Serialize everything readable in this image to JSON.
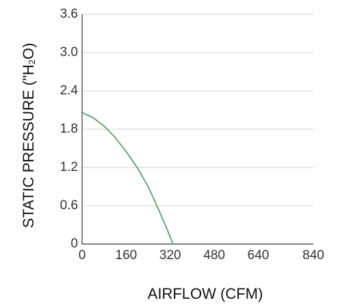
{
  "chart_data": {
    "type": "line",
    "title": "",
    "xlabel": "AIRFLOW (CFM)",
    "ylabel": {
      "before": "STATIC PRESSURE (\"H",
      "sub": "2",
      "after": "O)"
    },
    "xlim": [
      0,
      840
    ],
    "ylim": [
      0,
      3.6
    ],
    "x_ticks": [
      0,
      160,
      320,
      480,
      640,
      840
    ],
    "x_tick_labels": [
      "0",
      "160",
      "320",
      "480",
      "640",
      "840"
    ],
    "y_ticks": [
      0,
      0.6,
      1.2,
      1.8,
      2.4,
      3.0,
      3.6
    ],
    "y_tick_labels": [
      "0",
      "0.6",
      "1.2",
      "1.8",
      "2.4",
      "3.0",
      "3.6"
    ],
    "grid": true,
    "series_color": "#6aa37f",
    "grid_color": "#d0d0d0",
    "series": [
      {
        "x": [
          0,
          40,
          80,
          120,
          160,
          200,
          240,
          280,
          310,
          330
        ],
        "y": [
          2.06,
          1.98,
          1.85,
          1.67,
          1.45,
          1.2,
          0.9,
          0.52,
          0.22,
          0.0
        ]
      }
    ]
  }
}
